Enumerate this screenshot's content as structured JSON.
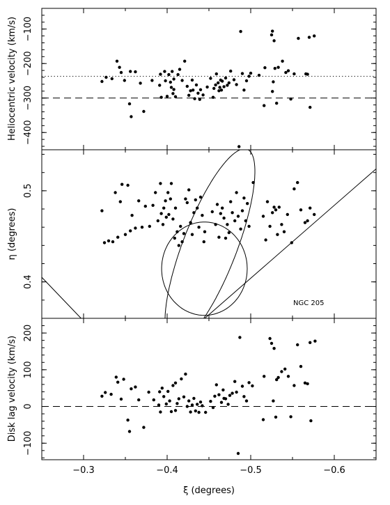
{
  "chart_data": [
    {
      "type": "scatter",
      "panel": "top",
      "ylabel": "Heliocentric velocity (km/s)",
      "xlim": [
        -0.25,
        -0.65
      ],
      "ylim": [
        -450,
        -40
      ],
      "yticks": [
        -100,
        -200,
        -300,
        -400
      ],
      "ytick_labels": [
        "−100",
        "−200",
        "−300",
        "−400"
      ],
      "reference_lines": [
        {
          "style": "dotted",
          "y": -237
        },
        {
          "style": "dashed",
          "y": -300
        }
      ],
      "points": [
        [
          -0.322,
          -252
        ],
        [
          -0.327,
          -240
        ],
        [
          -0.334,
          -244
        ],
        [
          -0.34,
          -193
        ],
        [
          -0.343,
          -211
        ],
        [
          -0.345,
          -226
        ],
        [
          -0.349,
          -249
        ],
        [
          -0.355,
          -317
        ],
        [
          -0.357,
          -354
        ],
        [
          -0.356,
          -223
        ],
        [
          -0.362,
          -224
        ],
        [
          -0.368,
          -257
        ],
        [
          -0.372,
          -339
        ],
        [
          -0.382,
          -249
        ],
        [
          -0.391,
          -263
        ],
        [
          -0.392,
          -231
        ],
        [
          -0.393,
          -298
        ],
        [
          -0.397,
          -223
        ],
        [
          -0.398,
          -250
        ],
        [
          -0.4,
          -295
        ],
        [
          -0.402,
          -232
        ],
        [
          -0.404,
          -254
        ],
        [
          -0.405,
          -269
        ],
        [
          -0.406,
          -223
        ],
        [
          -0.407,
          -287
        ],
        [
          -0.408,
          -275
        ],
        [
          -0.41,
          -296
        ],
        [
          -0.408,
          -245
        ],
        [
          -0.413,
          -232
        ],
        [
          -0.415,
          -217
        ],
        [
          -0.418,
          -249
        ],
        [
          -0.421,
          -193
        ],
        [
          -0.424,
          -266
        ],
        [
          -0.426,
          -292
        ],
        [
          -0.428,
          -279
        ],
        [
          -0.43,
          -248
        ],
        [
          -0.431,
          -277
        ],
        [
          -0.433,
          -302
        ],
        [
          -0.435,
          -262
        ],
        [
          -0.437,
          -286
        ],
        [
          -0.439,
          -304
        ],
        [
          -0.44,
          -276
        ],
        [
          -0.443,
          -291
        ],
        [
          -0.448,
          -268
        ],
        [
          -0.452,
          -243
        ],
        [
          -0.455,
          -298
        ],
        [
          -0.456,
          -272
        ],
        [
          -0.458,
          -262
        ],
        [
          -0.459,
          -230
        ],
        [
          -0.461,
          -256
        ],
        [
          -0.462,
          -279
        ],
        [
          -0.463,
          -269
        ],
        [
          -0.464,
          -248
        ],
        [
          -0.465,
          -277
        ],
        [
          -0.466,
          -251
        ],
        [
          -0.468,
          -267
        ],
        [
          -0.47,
          -242
        ],
        [
          -0.472,
          -263
        ],
        [
          -0.474,
          -256
        ],
        [
          -0.476,
          -222
        ],
        [
          -0.48,
          -247
        ],
        [
          -0.483,
          -261
        ],
        [
          -0.486,
          -441
        ],
        [
          -0.488,
          -107
        ],
        [
          -0.49,
          -229
        ],
        [
          -0.492,
          -277
        ],
        [
          -0.495,
          -250
        ],
        [
          -0.498,
          -237
        ],
        [
          -0.5,
          -228
        ],
        [
          -0.51,
          -234
        ],
        [
          -0.516,
          -322
        ],
        [
          -0.517,
          -212
        ],
        [
          -0.525,
          -117
        ],
        [
          -0.526,
          -106
        ],
        [
          -0.528,
          -134
        ],
        [
          -0.527,
          -253
        ],
        [
          -0.526,
          -281
        ],
        [
          -0.529,
          -214
        ],
        [
          -0.531,
          -315
        ],
        [
          -0.533,
          -211
        ],
        [
          -0.538,
          -193
        ],
        [
          -0.542,
          -226
        ],
        [
          -0.545,
          -221
        ],
        [
          -0.548,
          -303
        ],
        [
          -0.552,
          -230
        ],
        [
          -0.557,
          -127
        ],
        [
          -0.566,
          -230
        ],
        [
          -0.568,
          -231
        ],
        [
          -0.57,
          -124
        ],
        [
          -0.571,
          -327
        ],
        [
          -0.576,
          -120
        ]
      ]
    },
    {
      "type": "scatter",
      "panel": "middle",
      "ylabel": "η  (degrees)",
      "xlim": [
        -0.25,
        -0.65
      ],
      "ylim": [
        0.36,
        0.545
      ],
      "yticks": [
        0.5,
        0.4
      ],
      "ytick_labels": [
        "0.5",
        "0.4"
      ],
      "annotations": [
        "NGC 205"
      ],
      "points": [
        [
          -0.322,
          0.478
        ],
        [
          -0.325,
          0.443
        ],
        [
          -0.33,
          0.445
        ],
        [
          -0.335,
          0.444
        ],
        [
          -0.338,
          0.498
        ],
        [
          -0.341,
          0.449
        ],
        [
          -0.344,
          0.488
        ],
        [
          -0.346,
          0.507
        ],
        [
          -0.35,
          0.452
        ],
        [
          -0.353,
          0.506
        ],
        [
          -0.356,
          0.456
        ],
        [
          -0.358,
          0.473
        ],
        [
          -0.362,
          0.459
        ],
        [
          -0.366,
          0.489
        ],
        [
          -0.37,
          0.46
        ],
        [
          -0.374,
          0.483
        ],
        [
          -0.379,
          0.461
        ],
        [
          -0.383,
          0.484
        ],
        [
          -0.386,
          0.498
        ],
        [
          -0.389,
          0.467
        ],
        [
          -0.392,
          0.508
        ],
        [
          -0.393,
          0.475
        ],
        [
          -0.395,
          0.463
        ],
        [
          -0.396,
          0.481
        ],
        [
          -0.398,
          0.489
        ],
        [
          -0.399,
          0.471
        ],
        [
          -0.401,
          0.498
        ],
        [
          -0.402,
          0.474
        ],
        [
          -0.404,
          0.491
        ],
        [
          -0.405,
          0.508
        ],
        [
          -0.407,
          0.469
        ],
        [
          -0.409,
          0.448
        ],
        [
          -0.41,
          0.481
        ],
        [
          -0.412,
          0.455
        ],
        [
          -0.414,
          0.44
        ],
        [
          -0.416,
          0.461
        ],
        [
          -0.418,
          0.444
        ],
        [
          -0.42,
          0.453
        ],
        [
          -0.422,
          0.491
        ],
        [
          -0.424,
          0.487
        ],
        [
          -0.426,
          0.501
        ],
        [
          -0.428,
          0.465
        ],
        [
          -0.43,
          0.452
        ],
        [
          -0.432,
          0.476
        ],
        [
          -0.434,
          0.49
        ],
        [
          -0.436,
          0.481
        ],
        [
          -0.438,
          0.46
        ],
        [
          -0.44,
          0.493
        ],
        [
          -0.442,
          0.473
        ],
        [
          -0.444,
          0.444
        ],
        [
          -0.445,
          0.455
        ],
        [
          -0.454,
          0.477
        ],
        [
          -0.458,
          0.463
        ],
        [
          -0.46,
          0.485
        ],
        [
          -0.462,
          0.449
        ],
        [
          -0.464,
          0.475
        ],
        [
          -0.466,
          0.481
        ],
        [
          -0.468,
          0.47
        ],
        [
          -0.47,
          0.448
        ],
        [
          -0.472,
          0.463
        ],
        [
          -0.474,
          0.454
        ],
        [
          -0.476,
          0.488
        ],
        [
          -0.478,
          0.476
        ],
        [
          -0.481,
          0.467
        ],
        [
          -0.483,
          0.498
        ],
        [
          -0.485,
          0.472
        ],
        [
          -0.488,
          0.458
        ],
        [
          -0.49,
          0.478
        ],
        [
          -0.492,
          0.492
        ],
        [
          -0.494,
          0.467
        ],
        [
          -0.496,
          0.486
        ],
        [
          -0.498,
          0.461
        ],
        [
          -0.503,
          0.509
        ],
        [
          -0.515,
          0.472
        ],
        [
          -0.518,
          0.446
        ],
        [
          -0.52,
          0.488
        ],
        [
          -0.523,
          0.461
        ],
        [
          -0.526,
          0.476
        ],
        [
          -0.528,
          0.482
        ],
        [
          -0.53,
          0.479
        ],
        [
          -0.532,
          0.452
        ],
        [
          -0.534,
          0.482
        ],
        [
          -0.537,
          0.463
        ],
        [
          -0.54,
          0.455
        ],
        [
          -0.544,
          0.474
        ],
        [
          -0.549,
          0.443
        ],
        [
          -0.552,
          0.502
        ],
        [
          -0.556,
          0.509
        ],
        [
          -0.56,
          0.479
        ],
        [
          -0.565,
          0.465
        ],
        [
          -0.568,
          0.467
        ],
        [
          -0.571,
          0.481
        ],
        [
          -0.576,
          0.474
        ]
      ]
    },
    {
      "type": "scatter",
      "panel": "bottom",
      "ylabel": "Disk lag velocity (km/s)",
      "xlabel": "ξ  (degrees)",
      "xlim": [
        -0.25,
        -0.65
      ],
      "ylim": [
        -145,
        240
      ],
      "xticks": [
        -0.3,
        -0.4,
        -0.5,
        -0.6
      ],
      "xtick_labels": [
        "−0.3",
        "−0.4",
        "−0.5",
        "−0.6"
      ],
      "yticks": [
        200,
        100,
        0,
        -100
      ],
      "ytick_labels": [
        "200",
        "100",
        "0",
        "−100"
      ],
      "reference_lines": [
        {
          "style": "dashed",
          "y": 0
        }
      ],
      "points": [
        [
          -0.322,
          28
        ],
        [
          -0.326,
          38
        ],
        [
          -0.333,
          33
        ],
        [
          -0.339,
          80
        ],
        [
          -0.341,
          66
        ],
        [
          -0.345,
          20
        ],
        [
          -0.348,
          74
        ],
        [
          -0.353,
          -37
        ],
        [
          -0.355,
          -68
        ],
        [
          -0.357,
          48
        ],
        [
          -0.362,
          53
        ],
        [
          -0.366,
          18
        ],
        [
          -0.372,
          -57
        ],
        [
          -0.378,
          39
        ],
        [
          -0.384,
          18
        ],
        [
          -0.39,
          4
        ],
        [
          -0.391,
          40
        ],
        [
          -0.392,
          -15
        ],
        [
          -0.394,
          50
        ],
        [
          -0.396,
          27
        ],
        [
          -0.399,
          7
        ],
        [
          -0.401,
          41
        ],
        [
          -0.403,
          15
        ],
        [
          -0.405,
          -14
        ],
        [
          -0.407,
          57
        ],
        [
          -0.41,
          64
        ],
        [
          -0.41,
          -11
        ],
        [
          -0.412,
          8
        ],
        [
          -0.414,
          21
        ],
        [
          -0.417,
          75
        ],
        [
          -0.42,
          26
        ],
        [
          -0.422,
          88
        ],
        [
          -0.424,
          0
        ],
        [
          -0.426,
          15
        ],
        [
          -0.428,
          -15
        ],
        [
          -0.43,
          4
        ],
        [
          -0.432,
          22
        ],
        [
          -0.434,
          -12
        ],
        [
          -0.436,
          6
        ],
        [
          -0.438,
          -16
        ],
        [
          -0.44,
          12
        ],
        [
          -0.442,
          2
        ],
        [
          -0.446,
          -16
        ],
        [
          -0.452,
          14
        ],
        [
          -0.455,
          -3
        ],
        [
          -0.457,
          28
        ],
        [
          -0.459,
          59
        ],
        [
          -0.462,
          32
        ],
        [
          -0.465,
          11
        ],
        [
          -0.467,
          45
        ],
        [
          -0.468,
          22
        ],
        [
          -0.47,
          21
        ],
        [
          -0.473,
          6
        ],
        [
          -0.475,
          30
        ],
        [
          -0.478,
          36
        ],
        [
          -0.481,
          68
        ],
        [
          -0.483,
          39
        ],
        [
          -0.485,
          -128
        ],
        [
          -0.487,
          188
        ],
        [
          -0.49,
          55
        ],
        [
          -0.492,
          27
        ],
        [
          -0.495,
          15
        ],
        [
          -0.498,
          65
        ],
        [
          -0.502,
          56
        ],
        [
          -0.515,
          -36
        ],
        [
          -0.516,
          82
        ],
        [
          -0.523,
          185
        ],
        [
          -0.525,
          172
        ],
        [
          -0.527,
          15
        ],
        [
          -0.528,
          158
        ],
        [
          -0.53,
          -29
        ],
        [
          -0.531,
          73
        ],
        [
          -0.533,
          79
        ],
        [
          -0.537,
          95
        ],
        [
          -0.541,
          102
        ],
        [
          -0.545,
          82
        ],
        [
          -0.548,
          -28
        ],
        [
          -0.552,
          57
        ],
        [
          -0.556,
          168
        ],
        [
          -0.56,
          109
        ],
        [
          -0.565,
          64
        ],
        [
          -0.568,
          62
        ],
        [
          -0.571,
          174
        ],
        [
          -0.572,
          -39
        ],
        [
          -0.577,
          178
        ]
      ]
    }
  ],
  "overlays": {
    "large_ellipse": {
      "cx": -0.4512,
      "cy": 0.4391,
      "a": 0.1154,
      "b": 0.0319,
      "angle_deg": -67
    },
    "circle": {
      "cx": -0.4446,
      "cy": 0.4145,
      "r": 0.0512
    },
    "lines": [
      {
        "x1": -0.25,
        "y1": 0.405,
        "x2": -0.297,
        "y2": 0.36
      },
      {
        "x1": -0.445,
        "y1": 0.36,
        "x2": -0.65,
        "y2": 0.524
      }
    ]
  }
}
